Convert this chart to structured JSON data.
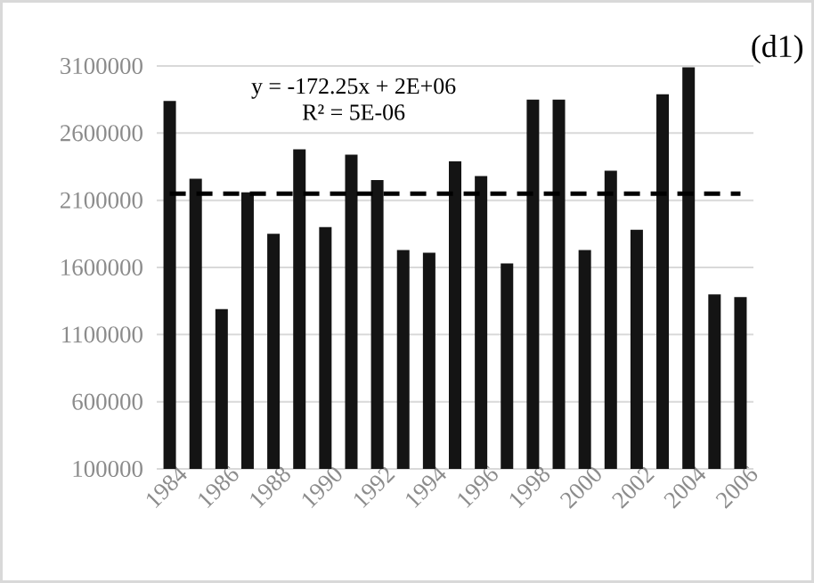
{
  "chart_data": {
    "type": "bar",
    "title": "(d1)",
    "categories": [
      "1984",
      null,
      "1986",
      null,
      "1988",
      null,
      "1990",
      null,
      "1992",
      null,
      "1994",
      null,
      "1996",
      null,
      "1998",
      null,
      "2000",
      null,
      "2002",
      null,
      "2004",
      null,
      "2006"
    ],
    "series": [
      {
        "color": "#141414",
        "values": [
          2840000,
          2260000,
          1290000,
          2160000,
          1850000,
          2480000,
          1900000,
          2440000,
          2250000,
          1730000,
          1710000,
          2390000,
          2280000,
          1630000,
          2850000,
          2850000,
          1730000,
          2320000,
          1880000,
          2890000,
          3090000,
          1400000,
          1380000
        ]
      },
      {
        "type": "line",
        "color": "#000000",
        "line_style": "dashed",
        "values": [
          2150000,
          2150000,
          2150000,
          2150000,
          2150000,
          2150000,
          2150000,
          2150000,
          2150000,
          2150000,
          2150000,
          2150000,
          2150000,
          2150000,
          2150000,
          2150000,
          2150000,
          2150000,
          2150000,
          2150000,
          2150000,
          2150000,
          2150000
        ]
      }
    ],
    "annotations": [
      "y = -172.25x + 2E+06",
      "R² = 5E-06"
    ],
    "ylim": [
      100000,
      3100000
    ],
    "yticks": [
      100000,
      600000,
      1100000,
      1600000,
      2100000,
      2600000,
      3100000
    ],
    "grid": "y"
  }
}
